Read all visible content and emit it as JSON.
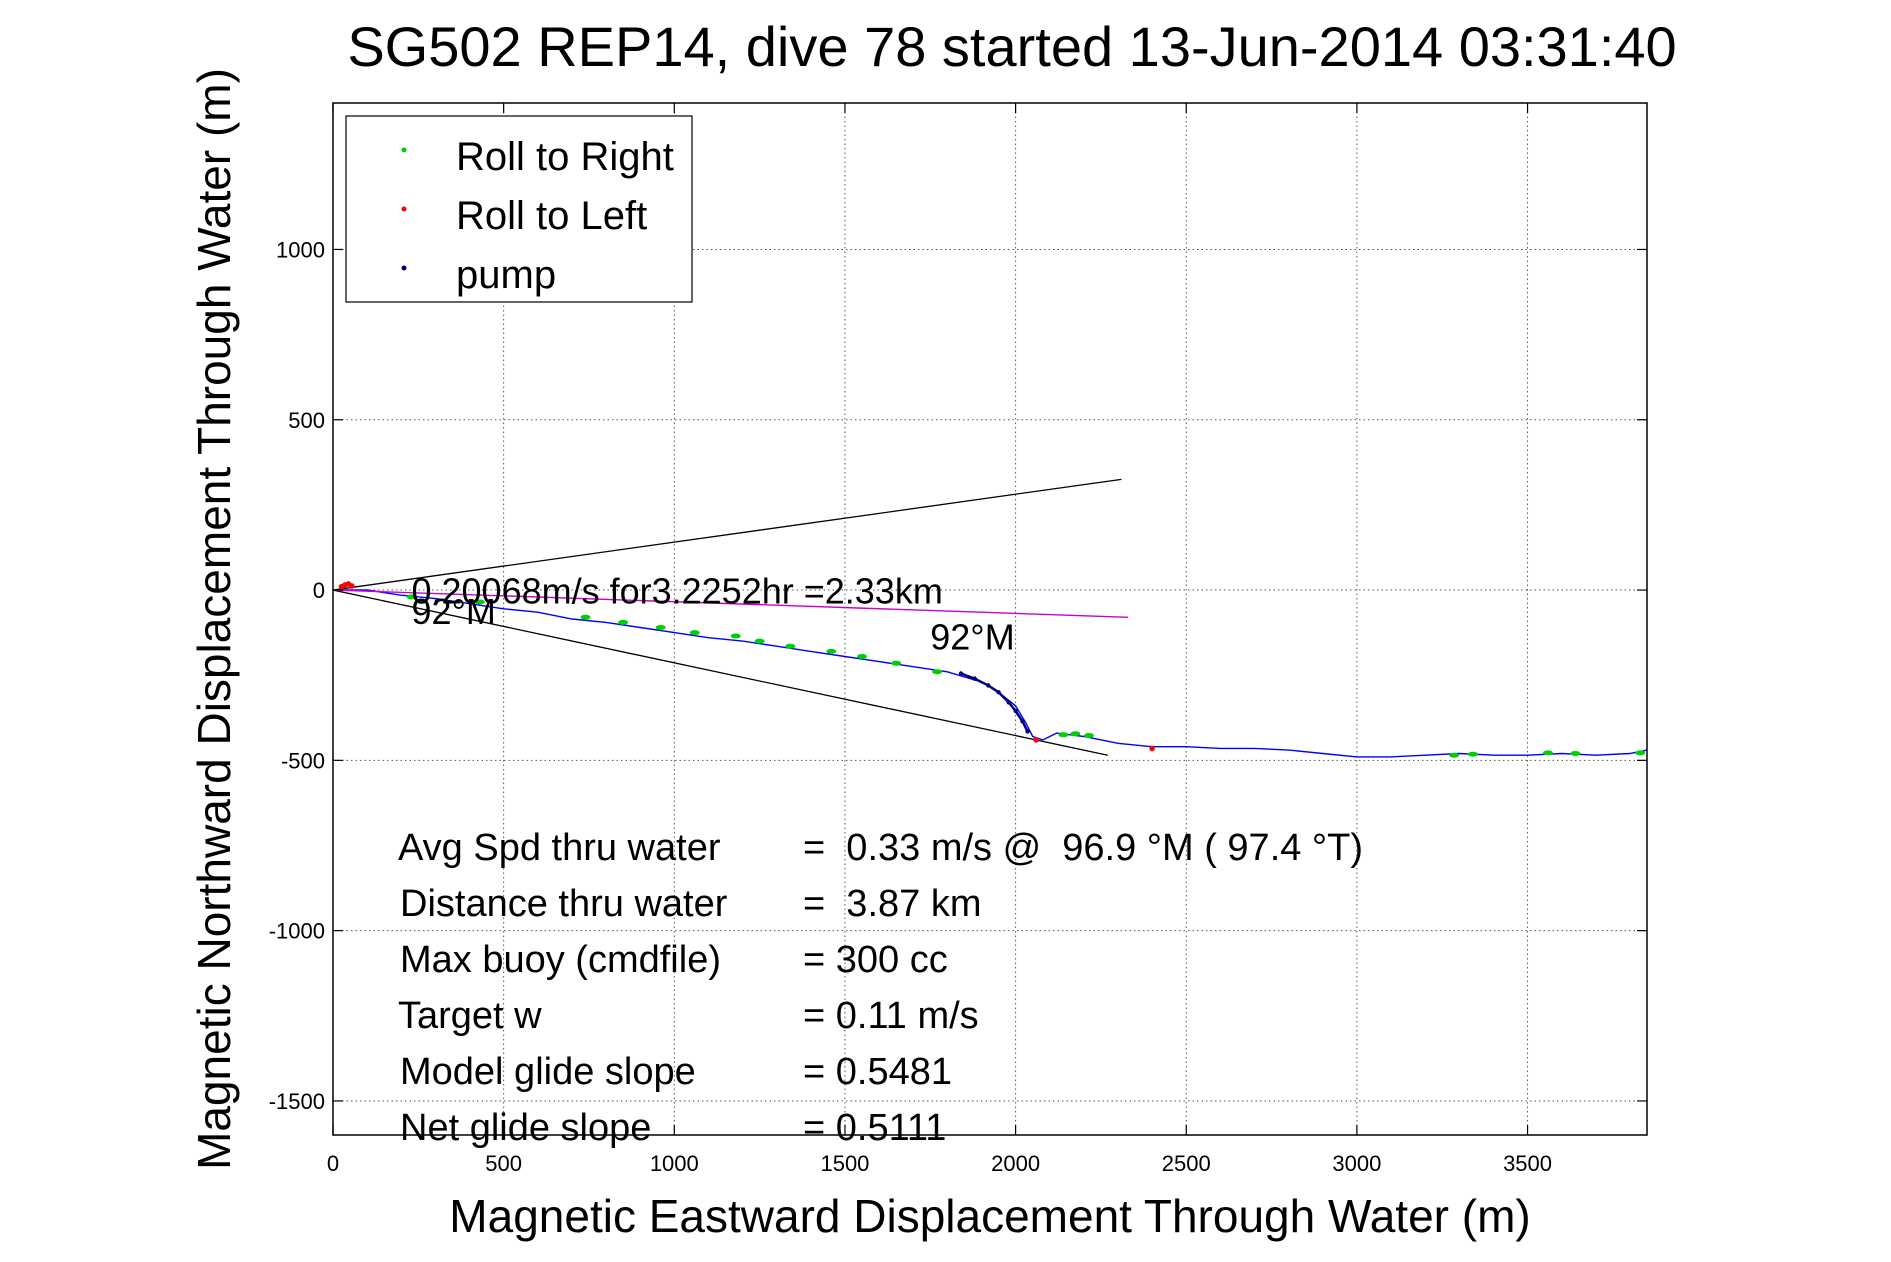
{
  "chart_data": {
    "type": "line",
    "title": "SG502 REP14, dive 78 started 13-Jun-2014 03:31:40",
    "xlabel": "Magnetic Eastward Displacement Through Water (m)",
    "ylabel": "Magnetic Northward Displacement Through Water (m)",
    "xlim": [
      0,
      3850
    ],
    "ylim": [
      -1600,
      1430
    ],
    "xticks": [
      0,
      500,
      1000,
      1500,
      2000,
      2500,
      3000,
      3500
    ],
    "yticks": [
      -1500,
      -1000,
      -500,
      0,
      500,
      1000
    ],
    "grid": true,
    "legend_position": "top-left",
    "legend": [
      {
        "label": "Roll to Right",
        "color": "#00d000"
      },
      {
        "label": "Roll to Left",
        "color": "#ff0000"
      },
      {
        "label": "pump",
        "color": "#000080"
      }
    ],
    "series": [
      {
        "kind": "track",
        "color": "#0000ff",
        "x": [
          0,
          100,
          200,
          300,
          400,
          500,
          600,
          700,
          800,
          900,
          1000,
          1100,
          1200,
          1300,
          1400,
          1500,
          1600,
          1700,
          1800,
          1900,
          1950,
          2000,
          2030,
          2050,
          2080,
          2120,
          2200,
          2300,
          2400,
          2500,
          2600,
          2700,
          2800,
          2900,
          3000,
          3100,
          3200,
          3300,
          3400,
          3500,
          3600,
          3700,
          3800,
          3850
        ],
        "y": [
          0,
          0,
          -15,
          -25,
          -40,
          -55,
          -65,
          -85,
          -95,
          -110,
          -125,
          -140,
          -150,
          -165,
          -180,
          -195,
          -210,
          -225,
          -240,
          -270,
          -300,
          -340,
          -390,
          -430,
          -440,
          -420,
          -430,
          -450,
          -460,
          -460,
          -465,
          -465,
          -470,
          -480,
          -490,
          -490,
          -485,
          -480,
          -485,
          -485,
          -480,
          -485,
          -480,
          -470
        ]
      },
      {
        "kind": "pump",
        "color": "#000080",
        "x": [
          1840,
          1880,
          1920,
          1950,
          1980,
          2000,
          2020,
          2035
        ],
        "y": [
          -245,
          -260,
          -280,
          -300,
          -330,
          -355,
          -385,
          -415
        ]
      },
      {
        "kind": "current",
        "color": "#cc00cc",
        "x": [
          0,
          2330
        ],
        "y": [
          0,
          -80
        ]
      }
    ],
    "reference_lines": [
      {
        "x": [
          0,
          2310
        ],
        "y": [
          0,
          325
        ]
      },
      {
        "x": [
          0,
          2270
        ],
        "y": [
          0,
          -485
        ]
      }
    ],
    "roll_right": {
      "x": [
        230,
        430,
        740,
        850,
        960,
        1060,
        1180,
        1250,
        1340,
        1460,
        1550,
        1650,
        1770,
        2140,
        2175,
        2215,
        3285,
        3340,
        3560,
        3640,
        3830
      ],
      "y": [
        -20,
        -35,
        -80,
        -95,
        -110,
        -125,
        -135,
        -150,
        -165,
        -180,
        -195,
        -215,
        -240,
        -425,
        -422,
        -427,
        -485,
        -482,
        -478,
        -480,
        -478
      ]
    },
    "roll_left": {
      "x": [
        25,
        35,
        45,
        55,
        2060,
        2400
      ],
      "y": [
        10,
        15,
        18,
        12,
        -440,
        -465
      ]
    },
    "annotations": [
      {
        "text": "0.20068m/s for3.2252hr =2.33km",
        "x": 230,
        "y": -40
      },
      {
        "text": "92°M",
        "x": 230,
        "y": -100
      },
      {
        "text": "92°M",
        "x": 1750,
        "y": -175
      }
    ],
    "stats": [
      {
        "label": "Avg Spd thru water",
        "value": "=  0.33 m/s @  96.9 °M ( 97.4 °T)"
      },
      {
        "label": "Distance thru water",
        "value": "=  3.87 km"
      },
      {
        "label": "Max buoy (cmdfile)",
        "value": "= 300 cc"
      },
      {
        "label": "Target w",
        "value": "= 0.11 m/s"
      },
      {
        "label": "Model glide slope",
        "value": "= 0.5481"
      },
      {
        "label": "Net glide slope",
        "value": "= 0.5111"
      }
    ]
  }
}
